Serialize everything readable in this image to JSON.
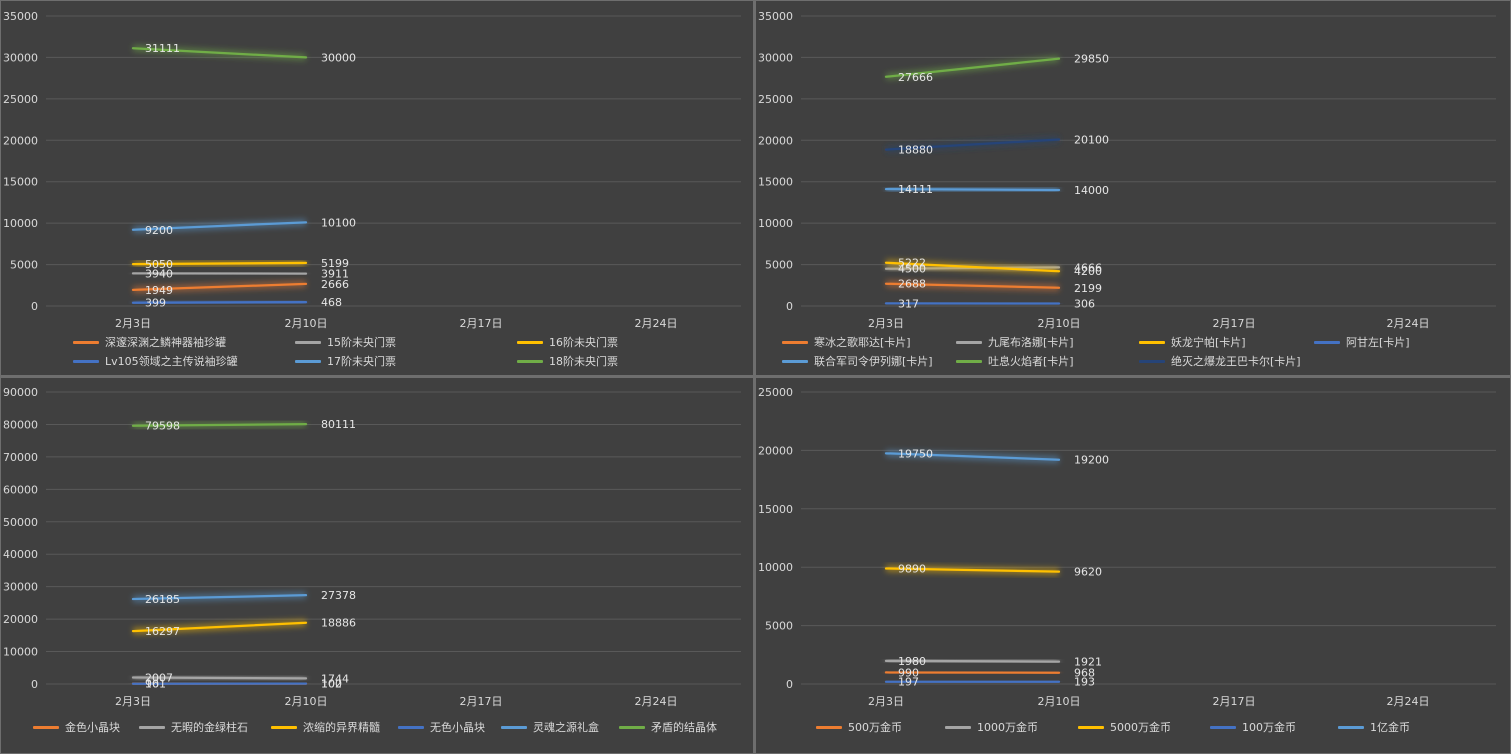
{
  "chart_data": [
    {
      "type": "line",
      "categories": [
        "2月3日",
        "2月10日",
        "2月17日",
        "2月24日"
      ],
      "ylim": [
        0,
        35000
      ],
      "yticks": [
        0,
        5000,
        10000,
        15000,
        20000,
        25000,
        30000,
        35000
      ],
      "ytick_labels": [
        "0",
        "5000",
        "10000",
        "15000",
        "20000",
        "25000",
        "30000",
        "35000"
      ],
      "grid": true,
      "legend_position": "bottom",
      "series": [
        {
          "name": "深邃深渊之鳞神器袖珍罐",
          "color": "#ed7d31",
          "values": [
            1949,
            2666,
            null,
            null
          ],
          "labels": [
            "1949",
            "2666"
          ]
        },
        {
          "name": "15阶未央门票",
          "color": "#a5a5a5",
          "values": [
            3940,
            3911,
            null,
            null
          ],
          "labels": [
            "3940",
            "3911"
          ]
        },
        {
          "name": "16阶未央门票",
          "color": "#ffc000",
          "values": [
            5050,
            5199,
            null,
            null
          ],
          "labels": [
            "5050",
            "5199"
          ]
        },
        {
          "name": "Lv105领域之主传说袖珍罐",
          "color": "#4472c4",
          "values": [
            399,
            468,
            null,
            null
          ],
          "labels": [
            "399",
            "468"
          ]
        },
        {
          "name": "17阶未央门票",
          "color": "#5b9bd5",
          "values": [
            9200,
            10100,
            null,
            null
          ],
          "labels": [
            "9200",
            "10100"
          ]
        },
        {
          "name": "18阶未央门票",
          "color": "#70ad47",
          "values": [
            31111,
            30000,
            null,
            null
          ],
          "labels": [
            "31111",
            "30000"
          ]
        }
      ]
    },
    {
      "type": "line",
      "categories": [
        "2月3日",
        "2月10日",
        "2月17日",
        "2月24日"
      ],
      "ylim": [
        0,
        35000
      ],
      "yticks": [
        0,
        5000,
        10000,
        15000,
        20000,
        25000,
        30000,
        35000
      ],
      "ytick_labels": [
        "0",
        "5000",
        "10000",
        "15000",
        "20000",
        "25000",
        "30000",
        "35000"
      ],
      "grid": true,
      "legend_position": "bottom",
      "series": [
        {
          "name": "寒冰之歌耶达[卡片]",
          "color": "#ed7d31",
          "values": [
            2688,
            2199,
            null,
            null
          ],
          "labels": [
            "2688",
            "2199"
          ]
        },
        {
          "name": "九尾布洛娜[卡片]",
          "color": "#a5a5a5",
          "values": [
            4500,
            4666,
            null,
            null
          ],
          "labels": [
            "4500",
            "4666"
          ]
        },
        {
          "name": "妖龙宁帕[卡片]",
          "color": "#ffc000",
          "values": [
            5222,
            4200,
            null,
            null
          ],
          "labels": [
            "5222",
            "4200"
          ]
        },
        {
          "name": "阿甘左[卡片]",
          "color": "#4472c4",
          "values": [
            317,
            306,
            null,
            null
          ],
          "labels": [
            "317",
            "306"
          ]
        },
        {
          "name": "联合军司令伊列娜[卡片]",
          "color": "#5b9bd5",
          "values": [
            14111,
            14000,
            null,
            null
          ],
          "labels": [
            "14111",
            "14000"
          ]
        },
        {
          "name": "吐息火焰者[卡片]",
          "color": "#70ad47",
          "values": [
            27666,
            29850,
            null,
            null
          ],
          "labels": [
            "27666",
            "29850"
          ]
        },
        {
          "name": "绝灭之爆龙王巴卡尔[卡片]",
          "color": "#264478",
          "values": [
            18880,
            20100,
            null,
            null
          ],
          "labels": [
            "18880",
            "20100"
          ]
        }
      ]
    },
    {
      "type": "line",
      "categories": [
        "2月3日",
        "2月10日",
        "2月17日",
        "2月24日"
      ],
      "ylim": [
        0,
        90000
      ],
      "yticks": [
        0,
        10000,
        20000,
        30000,
        40000,
        50000,
        60000,
        70000,
        80000,
        90000
      ],
      "ytick_labels": [
        "0",
        "10000",
        "20000",
        "30000",
        "40000",
        "50000",
        "60000",
        "70000",
        "80000",
        "90000"
      ],
      "grid": true,
      "legend_position": "bottom",
      "series": [
        {
          "name": "金色小晶块",
          "color": "#ed7d31",
          "values": [
            101,
            100,
            null,
            null
          ],
          "labels": [
            "101",
            "100"
          ]
        },
        {
          "name": "无暇的金绿柱石",
          "color": "#a5a5a5",
          "values": [
            2007,
            1744,
            null,
            null
          ],
          "labels": [
            "2007",
            "1744"
          ]
        },
        {
          "name": "浓缩的异界精髓",
          "color": "#ffc000",
          "values": [
            16297,
            18886,
            null,
            null
          ],
          "labels": [
            "16297",
            "18886"
          ]
        },
        {
          "name": "无色小晶块",
          "color": "#4472c4",
          "values": [
            96,
            102,
            null,
            null
          ],
          "labels": [
            "96",
            "102"
          ]
        },
        {
          "name": "灵魂之源礼盒",
          "color": "#5b9bd5",
          "values": [
            26185,
            27378,
            null,
            null
          ],
          "labels": [
            "26185",
            "27378"
          ]
        },
        {
          "name": "矛盾的结晶体",
          "color": "#70ad47",
          "values": [
            79598,
            80111,
            null,
            null
          ],
          "labels": [
            "79598",
            "80111"
          ]
        }
      ]
    },
    {
      "type": "line",
      "categories": [
        "2月3日",
        "2月10日",
        "2月17日",
        "2月24日"
      ],
      "ylim": [
        0,
        25000
      ],
      "yticks": [
        0,
        5000,
        10000,
        15000,
        20000,
        25000
      ],
      "ytick_labels": [
        "0",
        "5000",
        "10000",
        "15000",
        "20000",
        "25000"
      ],
      "grid": true,
      "legend_position": "bottom",
      "series": [
        {
          "name": "500万金币",
          "color": "#ed7d31",
          "values": [
            990,
            968,
            null,
            null
          ],
          "labels": [
            "990",
            "968"
          ]
        },
        {
          "name": "1000万金币",
          "color": "#a5a5a5",
          "values": [
            1980,
            1921,
            null,
            null
          ],
          "labels": [
            "1980",
            "1921"
          ]
        },
        {
          "name": "5000万金币",
          "color": "#ffc000",
          "values": [
            9890,
            9620,
            null,
            null
          ],
          "labels": [
            "9890",
            "9620"
          ]
        },
        {
          "name": "100万金币",
          "color": "#4472c4",
          "values": [
            197,
            193,
            null,
            null
          ],
          "labels": [
            "197",
            "193"
          ]
        },
        {
          "name": "1亿金币",
          "color": "#5b9bd5",
          "values": [
            19750,
            19200,
            null,
            null
          ],
          "labels": [
            "19750",
            "19200"
          ]
        }
      ]
    }
  ]
}
